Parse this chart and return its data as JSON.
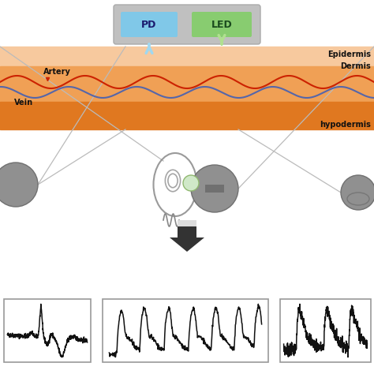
{
  "bg_color": "#ffffff",
  "epidermis_color": "#f7c99e",
  "dermis_color": "#f0a055",
  "hypo_color": "#e07820",
  "sensor_box_color": "#c0c0c0",
  "pd_color": "#80c8e8",
  "led_color": "#88cc70",
  "artery_color": "#cc2200",
  "vein_color": "#5566aa",
  "text_color": "#111111",
  "device_color": "#888888",
  "device_edge": "#666666",
  "line_color": "#aaaaaa",
  "label_epidermis": "Epidermis",
  "label_dermis": "Dermis",
  "label_hypo": "hypodermis",
  "label_artery": "Artery",
  "label_vein": "Vein",
  "label_pd": "PD",
  "label_led": "LED"
}
